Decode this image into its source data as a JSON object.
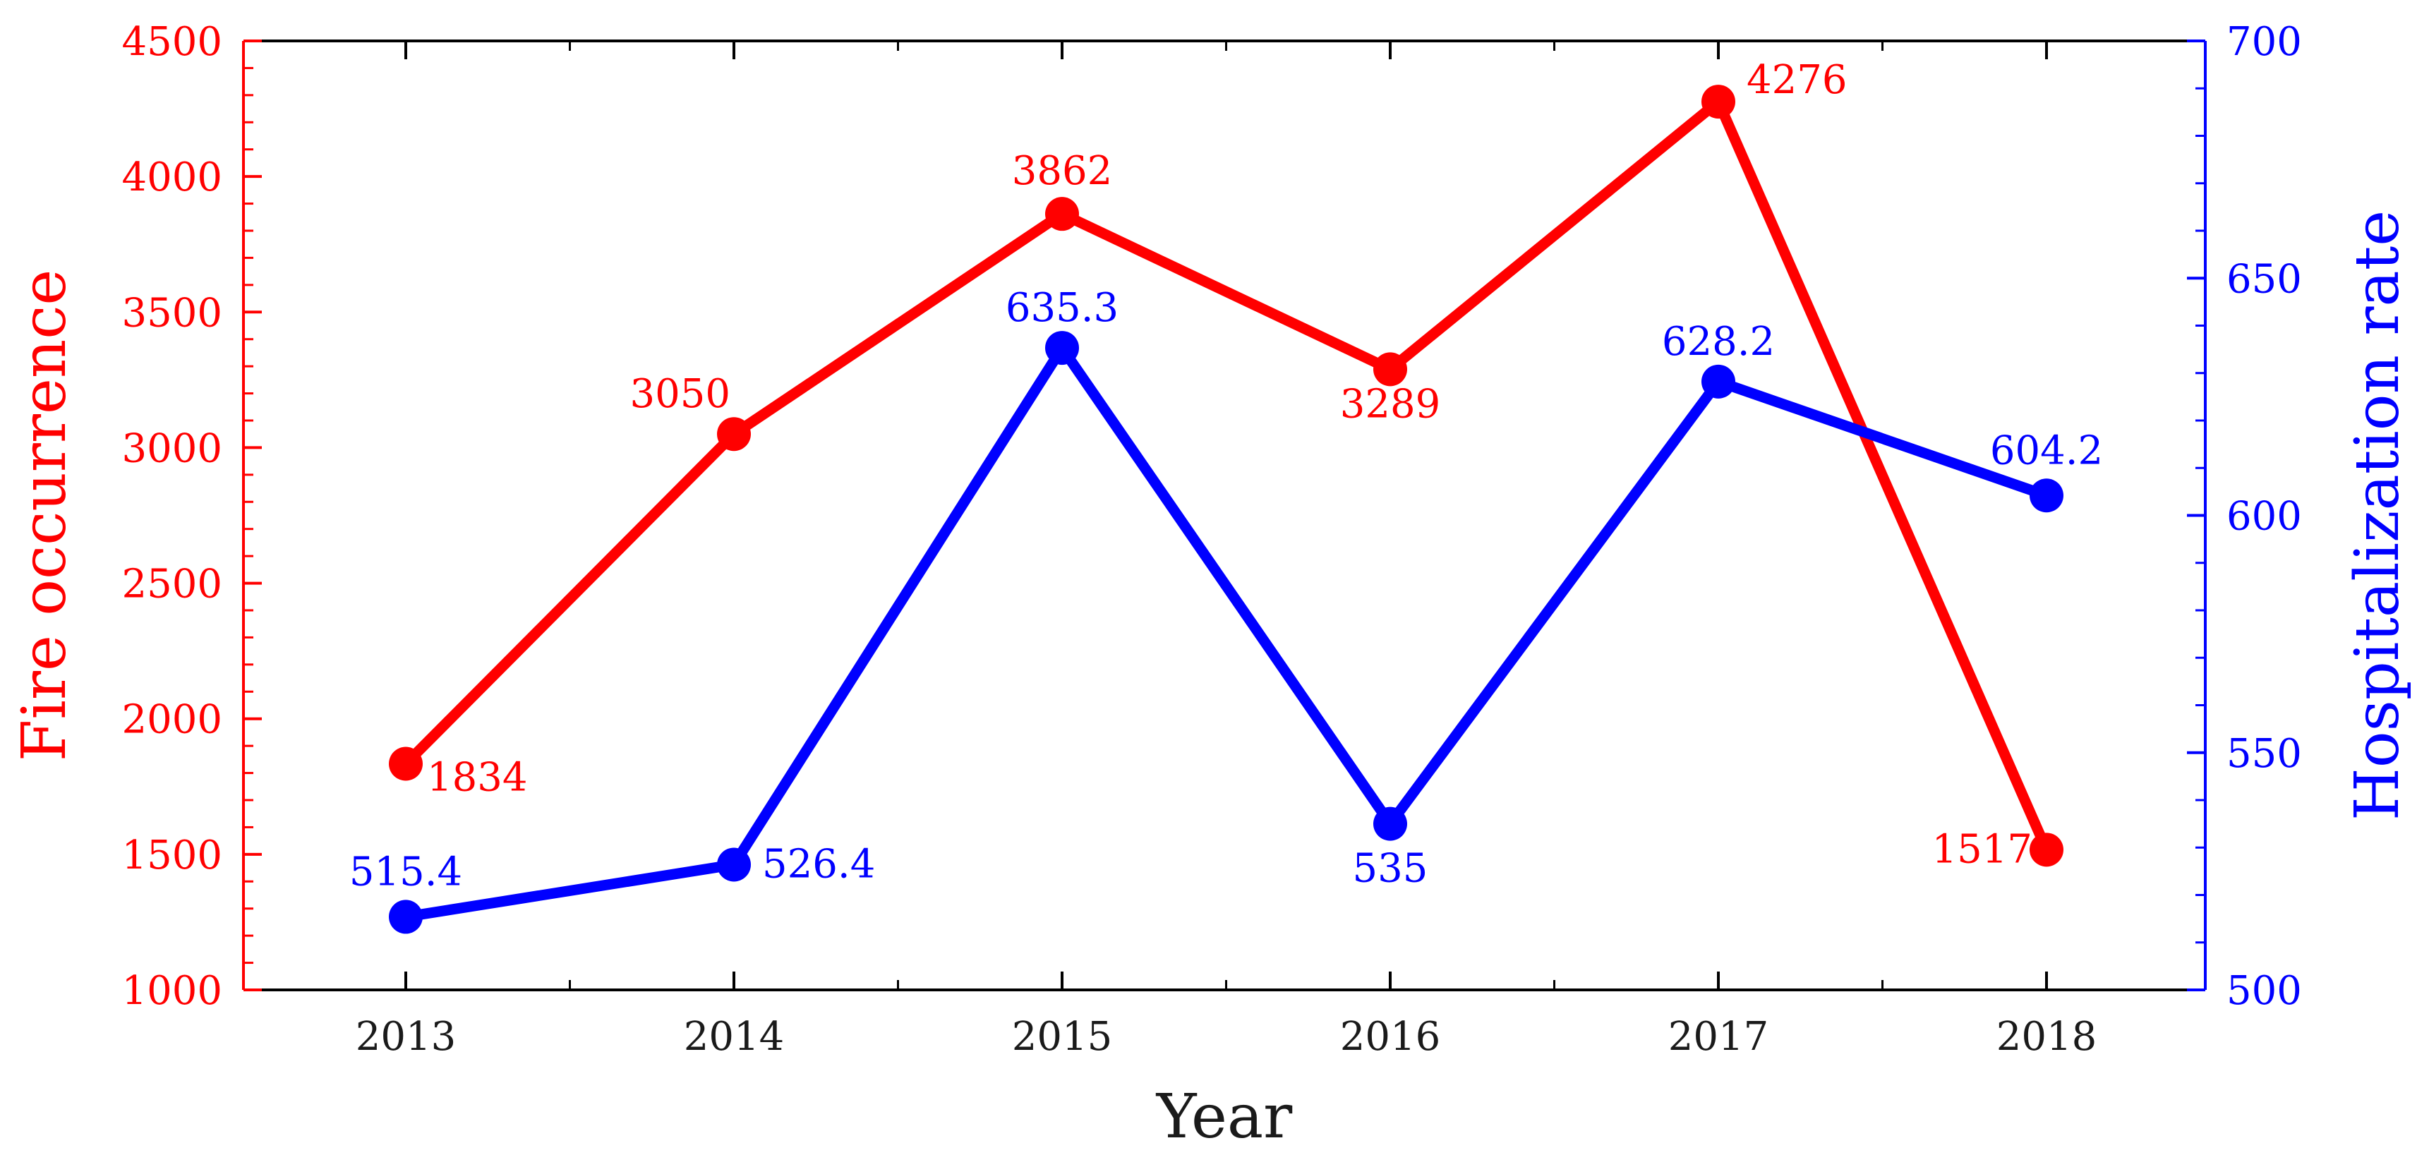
{
  "chart_data": {
    "type": "line",
    "title": "",
    "xlabel": "Year",
    "ylabel_left": "Fire occurrence",
    "ylabel_right": "Hospitalization rate",
    "categories": [
      "2013",
      "2014",
      "2015",
      "2016",
      "2017",
      "2018"
    ],
    "ylim_left": [
      1000,
      4500
    ],
    "yticks_left": [
      1000,
      1500,
      2000,
      2500,
      3000,
      3500,
      4000,
      4500
    ],
    "ylim_right": [
      500,
      700
    ],
    "yticks_right": [
      500,
      550,
      600,
      650,
      700
    ],
    "grid": false,
    "legend": "none",
    "series": [
      {
        "axis": "left",
        "color": "#ff0000",
        "values": [
          1834,
          3050,
          3862,
          3289,
          4276,
          1517
        ],
        "labels": [
          "1834",
          "3050",
          "3862",
          "3289",
          "4276",
          "1517"
        ]
      },
      {
        "axis": "right",
        "color": "#0000ff",
        "values": [
          515.4,
          526.4,
          635.3,
          535,
          628.2,
          604.2
        ],
        "labels": [
          "515.4",
          "526.4",
          "635.3",
          "535",
          "628.2",
          "604.2"
        ]
      }
    ]
  }
}
